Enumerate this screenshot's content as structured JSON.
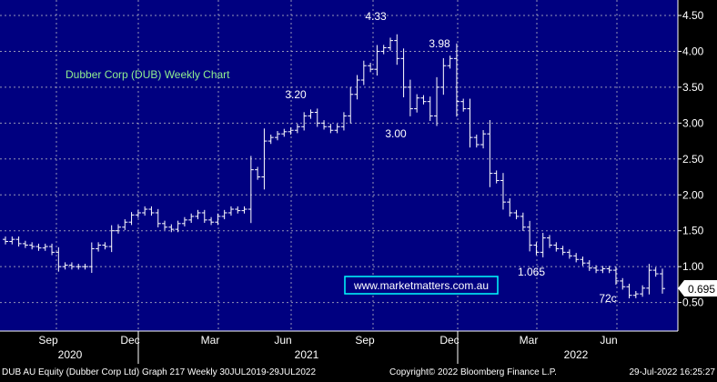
{
  "colors": {
    "plot_bg": "#000080",
    "grid": "#c8c8c8",
    "bars": "#ffffff",
    "axis_text": "#ffffff",
    "title_text": "#90ee90",
    "watermark_text": "#ffffff",
    "watermark_border": "#00ffff",
    "last_price_bg": "#ffffff",
    "last_price_text": "#000000",
    "footer_bg": "#000000",
    "footer_text": "#ffffff"
  },
  "chart_data": {
    "type": "ohlc",
    "title": "Dubber Corp (DUB) Weekly Chart",
    "xlabel": "",
    "ylabel": "",
    "ylim": [
      0.3,
      4.7
    ],
    "y_ticks": [
      "0.50",
      "1.00",
      "1.50",
      "2.00",
      "2.50",
      "3.00",
      "3.50",
      "4.00",
      "4.50"
    ],
    "x_month_labels": [
      "Sep",
      "Dec",
      "Mar",
      "Jun",
      "Sep",
      "Dec",
      "Mar",
      "Jun"
    ],
    "x_year_labels": [
      "2020",
      "2021",
      "2022"
    ],
    "grid": true,
    "last_price": "0.695",
    "annotations": [
      {
        "text": "4.33"
      },
      {
        "text": "3.98"
      },
      {
        "text": "3.20"
      },
      {
        "text": "3.00"
      },
      {
        "text": "1.065"
      },
      {
        "text": "72c"
      }
    ],
    "series": [
      {
        "closes": [
          1.35,
          1.38,
          1.32,
          1.3,
          1.28,
          1.26,
          1.28,
          1.2,
          1.0,
          1.02,
          1.0,
          1.0,
          1.0,
          1.25,
          1.3,
          1.28,
          1.5,
          1.55,
          1.62,
          1.72,
          1.75,
          1.8,
          1.75,
          1.6,
          1.55,
          1.52,
          1.6,
          1.65,
          1.7,
          1.75,
          1.65,
          1.62,
          1.7,
          1.75,
          1.8,
          1.78,
          1.8,
          2.35,
          2.25,
          2.75,
          2.8,
          2.85,
          2.88,
          2.9,
          2.95,
          3.1,
          3.15,
          3.0,
          2.95,
          2.9,
          2.95,
          3.1,
          3.4,
          3.6,
          3.8,
          3.75,
          4.0,
          4.05,
          4.15,
          3.9,
          3.5,
          3.2,
          3.35,
          3.3,
          3.1,
          3.5,
          3.8,
          3.9,
          3.3,
          3.2,
          2.8,
          2.7,
          2.85,
          2.3,
          2.2,
          1.9,
          1.75,
          1.7,
          1.55,
          1.3,
          1.2,
          1.4,
          1.3,
          1.25,
          1.2,
          1.15,
          1.1,
          1.05,
          0.98,
          0.95,
          0.97,
          0.95,
          0.8,
          0.72,
          0.6,
          0.62,
          0.7,
          0.95,
          0.9,
          0.695
        ]
      }
    ]
  },
  "watermark": "www.marketmatters.com.au",
  "footer": {
    "left": "DUB AU Equity (Dubber Corp Ltd) Graph 217  Weekly 30JUL2019-29JUL2022",
    "center": "Copyright© 2022 Bloomberg Finance L.P.",
    "right": "29-Jul-2022 16:25:27"
  }
}
